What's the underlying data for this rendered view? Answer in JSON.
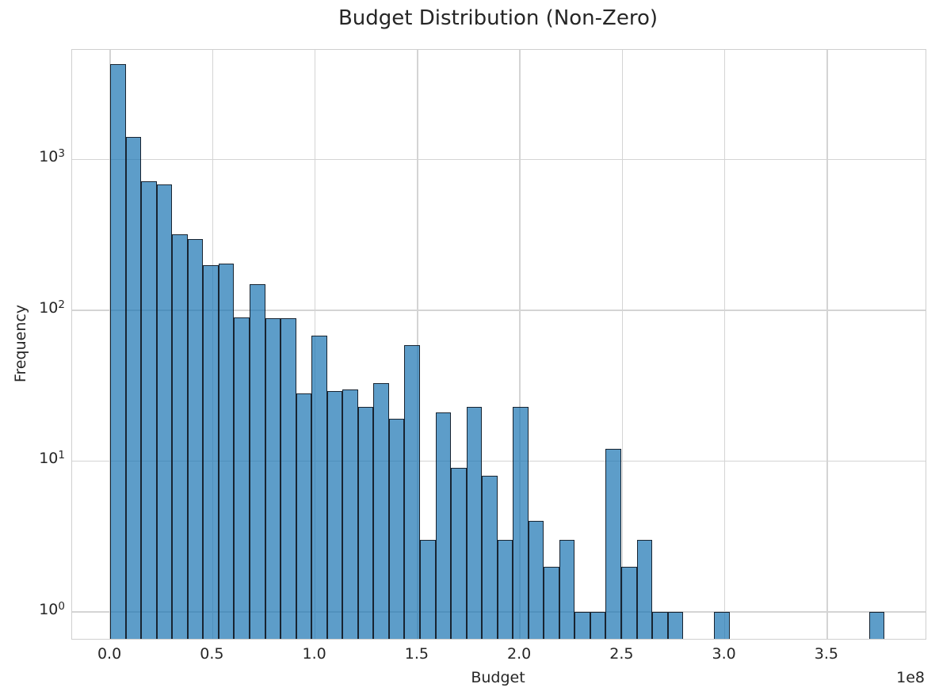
{
  "chart_data": {
    "type": "bar",
    "variant": "histogram",
    "title": "Budget Distribution (Non-Zero)",
    "xlabel": "Budget",
    "ylabel": "Frequency",
    "x_offset_label": "1e8",
    "yscale": "log",
    "grid": true,
    "legend": null,
    "x_tick_labels": [
      "0.0",
      "0.5",
      "1.0",
      "1.5",
      "2.0",
      "2.5",
      "3.0",
      "3.5"
    ],
    "x_tick_values_e8": [
      0,
      0.5,
      1,
      1.5,
      2,
      2.5,
      3,
      3.5
    ],
    "y_tick_base": "10",
    "y_tick_exponents": [
      0,
      1,
      2,
      3
    ],
    "xlim_e8": [
      -0.186,
      3.98
    ],
    "ylim": [
      0.663,
      5320
    ],
    "bin_start_e8": 0,
    "bin_width_e8": 0.0756,
    "bin_width_budget": 7560000,
    "n_bins": 50,
    "counts": [
      4300,
      1400,
      715,
      680,
      317,
      297,
      199,
      203,
      90,
      148,
      89,
      88,
      28,
      68,
      29,
      30,
      23,
      33,
      19,
      59,
      3,
      21,
      9,
      23,
      8,
      3,
      23,
      4,
      2,
      3,
      1,
      1,
      12,
      2,
      3,
      1,
      1,
      0,
      0,
      1,
      0,
      0,
      0,
      0,
      0,
      0,
      0,
      0,
      0,
      1
    ],
    "colors": {
      "bar_fill_base": "#1f77b4",
      "bar_fill_rendered": "#62a0ca",
      "bar_edge": "#15181f",
      "grid": "#d4d4d4",
      "spine": "#cfcfcf",
      "text": "#262626",
      "background": "#ffffff"
    }
  }
}
